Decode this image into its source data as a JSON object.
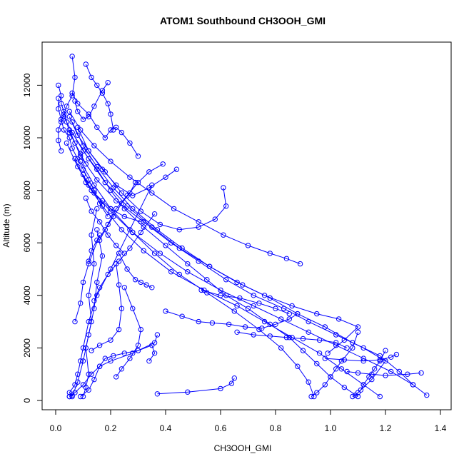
{
  "chart_data": {
    "type": "line",
    "title": "ATOM1 Southbound CH3OOH_GMI",
    "xlabel": "CH3OOH_GMI",
    "ylabel": "Altitude (m)",
    "xlim": [
      0.0,
      1.4
    ],
    "ylim": [
      0,
      12500
    ],
    "x_ticks": [
      0.0,
      0.2,
      0.4,
      0.6,
      0.8,
      1.0,
      1.2,
      1.4
    ],
    "x_tick_labels": [
      "0.0",
      "0.2",
      "0.4",
      "0.6",
      "0.8",
      "1.0",
      "1.2",
      "1.4"
    ],
    "y_ticks": [
      0,
      2000,
      4000,
      6000,
      8000,
      10000,
      12000
    ],
    "y_tick_labels": [
      "0",
      "2000",
      "4000",
      "6000",
      "8000",
      "10000",
      "12000"
    ],
    "grid": false,
    "legend": "none",
    "marker": "open-circle",
    "line_color": "#0000ff",
    "series": [
      {
        "x": [
          0.05,
          0.06,
          0.05,
          0.07,
          0.08,
          0.09,
          0.1,
          0.12,
          0.15,
          0.2,
          0.27,
          0.35
        ],
        "y": [
          150,
          200,
          300,
          600,
          1000,
          1500,
          2000,
          3000,
          4000,
          5000,
          6500,
          8200
        ]
      },
      {
        "x": [
          0.05,
          0.07,
          0.1,
          0.13,
          0.16,
          0.2,
          0.28,
          0.36,
          0.37
        ],
        "y": [
          150,
          300,
          600,
          1000,
          1300,
          1500,
          1800,
          2200,
          2500
        ]
      },
      {
        "x": [
          0.09,
          0.12,
          0.14,
          0.16,
          0.18,
          0.21,
          0.25,
          0.3,
          0.35,
          0.36,
          0.34
        ],
        "y": [
          150,
          400,
          800,
          1300,
          1600,
          1700,
          1800,
          1900,
          2100,
          1800,
          1500
        ]
      },
      {
        "x": [
          0.1,
          0.11,
          0.12,
          0.11,
          0.13,
          0.12,
          0.14,
          0.13,
          0.15
        ],
        "y": [
          150,
          500,
          1000,
          2000,
          3000,
          4000,
          5200,
          6300,
          7300
        ]
      },
      {
        "x": [
          0.06,
          0.08,
          0.1,
          0.12,
          0.14,
          0.15,
          0.17,
          0.15
        ],
        "y": [
          150,
          700,
          1500,
          2500,
          3500,
          4500,
          5500,
          6500
        ]
      },
      {
        "x": [
          0.37,
          0.48,
          0.6,
          0.64,
          0.65
        ],
        "y": [
          250,
          320,
          450,
          650,
          850
        ]
      },
      {
        "x": [
          0.07,
          0.09,
          0.1,
          0.12,
          0.16
        ],
        "y": [
          3000,
          3700,
          4500,
          5200,
          6300
        ]
      },
      {
        "x": [
          0.13,
          0.16,
          0.2,
          0.23,
          0.24,
          0.23,
          0.22
        ],
        "y": [
          1900,
          2100,
          2300,
          2700,
          3500,
          4400,
          5200
        ]
      },
      {
        "x": [
          0.22,
          0.24,
          0.27,
          0.3,
          0.31,
          0.28,
          0.25
        ],
        "y": [
          900,
          1200,
          1600,
          2100,
          2700,
          3500,
          4300
        ]
      },
      {
        "x": [
          1.1,
          1.05,
          1.0,
          0.95,
          0.9,
          0.85,
          0.78,
          0.7,
          0.62,
          0.55,
          0.48,
          0.4,
          0.32,
          0.25,
          0.2,
          0.15,
          0.1,
          0.06,
          0.03
        ],
        "y": [
          150,
          500,
          900,
          1400,
          1900,
          2400,
          2900,
          3500,
          4000,
          4600,
          5200,
          5900,
          6600,
          7300,
          8000,
          8800,
          9500,
          10200,
          10800
        ]
      },
      {
        "x": [
          1.35,
          1.3,
          1.22,
          1.12,
          1.02,
          0.92,
          0.82,
          0.72,
          0.6,
          0.48,
          0.38,
          0.28,
          0.2,
          0.13,
          0.08,
          0.04
        ],
        "y": [
          200,
          600,
          1100,
          1600,
          2100,
          2600,
          3100,
          3600,
          4200,
          4900,
          5600,
          6400,
          7200,
          8000,
          8900,
          9800
        ]
      },
      {
        "x": [
          1.18,
          1.12,
          1.04,
          0.96,
          0.86,
          0.76,
          0.66,
          0.54,
          0.42,
          0.32,
          0.24,
          0.17,
          0.11,
          0.07
        ],
        "y": [
          150,
          600,
          1200,
          1800,
          2400,
          3000,
          3600,
          4200,
          4900,
          5700,
          6500,
          7400,
          8300,
          9200
        ]
      },
      {
        "x": [
          1.3,
          1.25,
          1.18,
          1.08,
          0.98,
          0.88,
          0.78,
          0.68,
          0.56,
          0.45,
          0.35,
          0.26,
          0.18,
          0.12,
          0.06
        ],
        "y": [
          600,
          1100,
          1700,
          2200,
          2800,
          3300,
          3900,
          4400,
          5100,
          5800,
          6600,
          7400,
          8300,
          9200,
          10200
        ]
      },
      {
        "x": [
          1.1,
          1.15,
          1.2,
          1.12,
          1.02,
          0.92,
          0.83,
          0.72,
          0.62,
          0.52,
          0.42,
          0.32,
          0.22,
          0.15,
          0.09,
          0.05
        ],
        "y": [
          300,
          800,
          1500,
          2000,
          2500,
          3000,
          3500,
          4000,
          4600,
          5300,
          6000,
          6800,
          7600,
          8400,
          9300,
          10300
        ]
      },
      {
        "x": [
          0.94,
          0.92,
          0.88,
          0.82,
          0.74,
          0.65,
          0.55,
          0.45,
          0.36,
          0.28,
          0.2,
          0.14,
          0.09
        ],
        "y": [
          150,
          700,
          1300,
          2000,
          2700,
          3400,
          4100,
          4800,
          5600,
          6400,
          7300,
          8200,
          9100
        ]
      },
      {
        "x": [
          0.99,
          1.05,
          1.1,
          1.03,
          0.95,
          0.86,
          0.76,
          0.66,
          0.56,
          0.46,
          0.37,
          0.28,
          0.21,
          0.15,
          0.1,
          0.06
        ],
        "y": [
          1800,
          2300,
          2800,
          3100,
          3300,
          3600,
          4000,
          4500,
          5100,
          5800,
          6500,
          7300,
          8100,
          8900,
          9700,
          10600
        ]
      },
      {
        "x": [
          0.89,
          0.84,
          0.78,
          0.7,
          0.61,
          0.52,
          0.43,
          0.35,
          0.27,
          0.2,
          0.14,
          0.09,
          0.05
        ],
        "y": [
          5200,
          5400,
          5600,
          5900,
          6300,
          6800,
          7300,
          7900,
          8500,
          9100,
          9700,
          10300,
          11000
        ]
      },
      {
        "x": [
          0.61,
          0.62,
          0.58,
          0.52,
          0.45,
          0.38,
          0.31,
          0.24,
          0.18,
          0.12,
          0.08
        ],
        "y": [
          8100,
          7400,
          6900,
          6600,
          6500,
          6700,
          7200,
          7900,
          8700,
          9500,
          10400
        ]
      },
      {
        "x": [
          0.44,
          0.4,
          0.34,
          0.28,
          0.22,
          0.17,
          0.12,
          0.08,
          0.05
        ],
        "y": [
          8800,
          8500,
          8100,
          7800,
          8200,
          8800,
          9500,
          10100,
          10800
        ]
      },
      {
        "x": [
          0.3,
          0.27,
          0.24,
          0.22,
          0.2,
          0.18,
          0.15,
          0.12,
          0.08,
          0.06
        ],
        "y": [
          9300,
          9800,
          10200,
          10400,
          10300,
          10000,
          10400,
          10900,
          11300,
          11700
        ]
      },
      {
        "x": [
          0.07,
          0.08,
          0.1,
          0.12,
          0.14,
          0.17,
          0.19
        ],
        "y": [
          11400,
          11000,
          10700,
          10800,
          11200,
          11800,
          12100
        ]
      },
      {
        "x": [
          0.06,
          0.07,
          0.06,
          0.04,
          0.03,
          0.02,
          0.01,
          0.01,
          0.02
        ],
        "y": [
          13100,
          12300,
          11600,
          11200,
          10900,
          10600,
          10300,
          9900,
          9500
        ]
      },
      {
        "x": [
          0.11,
          0.13,
          0.15,
          0.17,
          0.19,
          0.2,
          0.21
        ],
        "y": [
          12800,
          12300,
          12000,
          11700,
          11300,
          10900,
          10300
        ]
      },
      {
        "x": [
          0.01,
          0.02,
          0.02,
          0.03,
          0.04,
          0.05,
          0.07,
          0.09,
          0.11
        ],
        "y": [
          12000,
          11600,
          11300,
          11000,
          10600,
          10200,
          9800,
          9400,
          9000
        ]
      },
      {
        "x": [
          0.01,
          0.01,
          0.02,
          0.03,
          0.05,
          0.06,
          0.08,
          0.1,
          0.12,
          0.14,
          0.16,
          0.19
        ],
        "y": [
          11500,
          11100,
          10700,
          10300,
          10000,
          9600,
          9200,
          8800,
          8400,
          8000,
          7500,
          7000
        ]
      },
      {
        "x": [
          0.4,
          0.46,
          0.52,
          0.57,
          0.63,
          0.69,
          0.75,
          0.8,
          0.85,
          0.88
        ],
        "y": [
          3400,
          3200,
          3000,
          2950,
          2900,
          2800,
          2750,
          2900,
          3100,
          3300
        ]
      },
      {
        "x": [
          0.66,
          0.72,
          0.78,
          0.84,
          0.9,
          0.96,
          1.02,
          1.06
        ],
        "y": [
          2600,
          2500,
          2450,
          2400,
          2350,
          2300,
          2200,
          2000
        ]
      },
      {
        "x": [
          0.98,
          1.05,
          1.12,
          1.18,
          1.22,
          1.24
        ],
        "y": [
          1600,
          1550,
          1500,
          1550,
          1650,
          1750
        ]
      },
      {
        "x": [
          1.06,
          1.1,
          1.15,
          1.2,
          1.28,
          1.33
        ],
        "y": [
          1100,
          1050,
          1000,
          950,
          1000,
          1050
        ]
      },
      {
        "x": [
          0.53,
          0.6,
          0.67,
          0.74,
          0.8,
          0.85
        ],
        "y": [
          4200,
          4000,
          3900,
          3700,
          3500,
          3300
        ]
      },
      {
        "x": [
          0.93,
          0.95,
          0.98,
          1.0,
          1.02,
          1.04,
          1.08,
          1.1
        ],
        "y": [
          150,
          300,
          600,
          900,
          1200,
          1500,
          2000,
          2600
        ]
      },
      {
        "x": [
          1.08,
          1.09,
          1.11,
          1.12,
          1.14,
          1.16,
          1.18,
          1.2
        ],
        "y": [
          150,
          200,
          400,
          600,
          900,
          1200,
          1500,
          1900
        ]
      },
      {
        "x": [
          0.12,
          0.13,
          0.15,
          0.18,
          0.21,
          0.24,
          0.27,
          0.29
        ],
        "y": [
          5300,
          5700,
          6100,
          6500,
          7000,
          7500,
          7900,
          8300
        ]
      },
      {
        "x": [
          0.14,
          0.16,
          0.19,
          0.23,
          0.27,
          0.31,
          0.36
        ],
        "y": [
          3800,
          4300,
          4800,
          5300,
          5800,
          6400,
          7100
        ]
      },
      {
        "x": [
          0.16,
          0.19,
          0.22,
          0.26,
          0.3,
          0.34,
          0.39
        ],
        "y": [
          6100,
          6700,
          7300,
          7800,
          8300,
          8700,
          9000
        ]
      },
      {
        "x": [
          0.23,
          0.26,
          0.29,
          0.31,
          0.33,
          0.35
        ],
        "y": [
          5600,
          5000,
          4600,
          4500,
          4400,
          4300
        ]
      },
      {
        "x": [
          0.11,
          0.13,
          0.16,
          0.19,
          0.22,
          0.25
        ],
        "y": [
          7700,
          7200,
          6800,
          6300,
          5900,
          5600
        ]
      },
      {
        "x": [
          0.1,
          0.12,
          0.14,
          0.17,
          0.2,
          0.25,
          0.31
        ],
        "y": [
          8600,
          8200,
          7900,
          7600,
          7300,
          7000,
          6800
        ]
      }
    ]
  }
}
